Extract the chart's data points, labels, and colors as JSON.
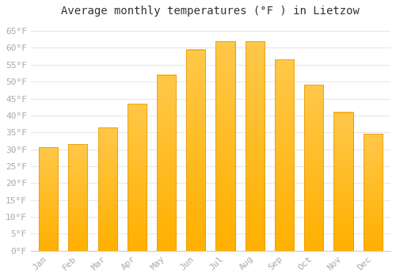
{
  "title": "Average monthly temperatures (°F ) in Lietzow",
  "months": [
    "Jan",
    "Feb",
    "Mar",
    "Apr",
    "May",
    "Jun",
    "Jul",
    "Aug",
    "Sep",
    "Oct",
    "Nov",
    "Dec"
  ],
  "values": [
    30.5,
    31.5,
    36.5,
    43.5,
    52.0,
    59.5,
    62.0,
    62.0,
    56.5,
    49.0,
    41.0,
    34.5
  ],
  "bar_color_top": "#FFC84A",
  "bar_color_bottom": "#FFB000",
  "bar_edge_color": "#E89400",
  "background_color": "#FFFFFF",
  "grid_color": "#E8E8E8",
  "ytick_labels": [
    "0°F",
    "5°F",
    "10°F",
    "15°F",
    "20°F",
    "25°F",
    "30°F",
    "35°F",
    "40°F",
    "45°F",
    "50°F",
    "55°F",
    "60°F",
    "65°F"
  ],
  "ytick_values": [
    0,
    5,
    10,
    15,
    20,
    25,
    30,
    35,
    40,
    45,
    50,
    55,
    60,
    65
  ],
  "ylim": [
    0,
    68
  ],
  "title_fontsize": 10,
  "tick_fontsize": 8,
  "tick_color": "#AAAAAA",
  "font_family": "monospace",
  "bar_width": 0.65
}
